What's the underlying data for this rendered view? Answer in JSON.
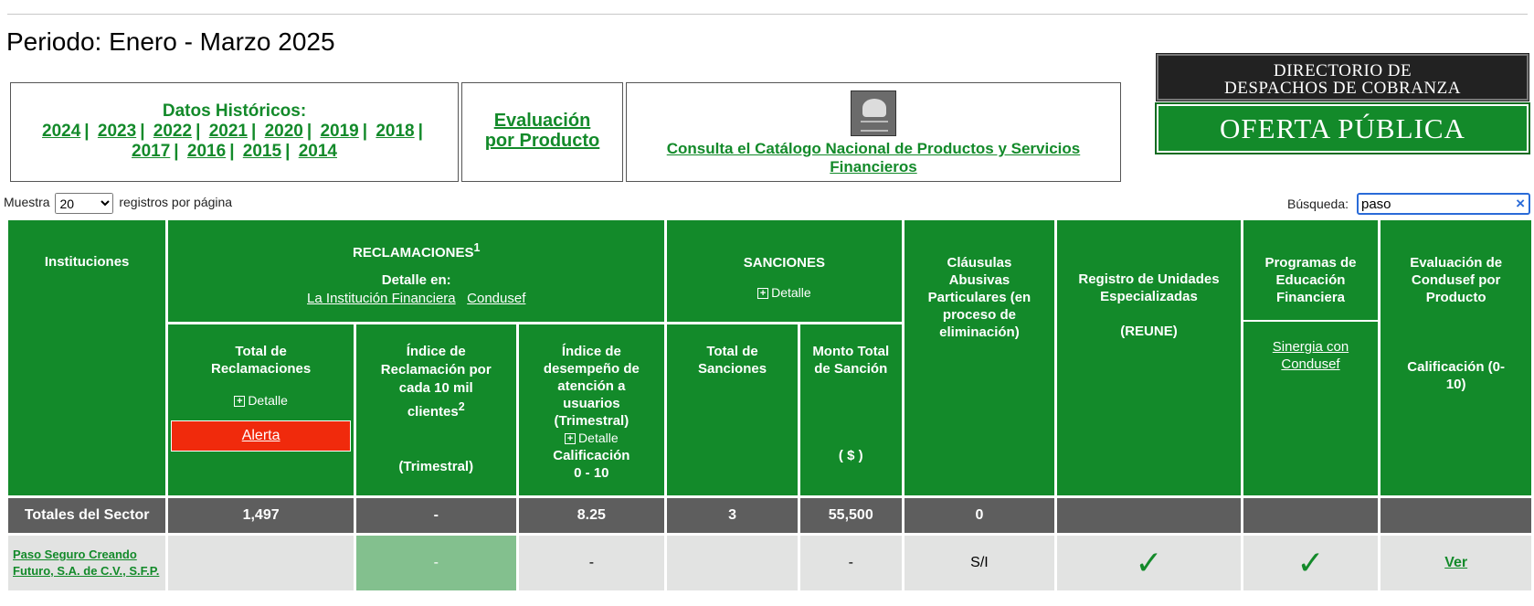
{
  "periodo": "Periodo: Enero - Marzo 2025",
  "historicos": {
    "title": "Datos Históricos:",
    "years": [
      "2024",
      "2023",
      "2022",
      "2021",
      "2020",
      "2019",
      "2018",
      "2017",
      "2016",
      "2015",
      "2014"
    ]
  },
  "evaluacion": {
    "line1": "Evaluación",
    "line2": "por Producto"
  },
  "catalogo": {
    "link": "Consulta el Catálogo Nacional de Productos y Servicios Financieros"
  },
  "banners": {
    "directorio_line1": "DIRECTORIO DE",
    "directorio_line2": "DESPACHOS DE COBRANZA",
    "oferta": "OFERTA PÚBLICA"
  },
  "controls": {
    "muestra_label": "Muestra",
    "page_size": "20",
    "registros_label": "registros por página",
    "busqueda_label": "Búsqueda:",
    "busqueda_value": "paso",
    "clear_icon": "×"
  },
  "headers": {
    "instituciones": "Instituciones",
    "reclamaciones": "RECLAMACIONES",
    "reclamaciones_sup": "1",
    "detalle_en": "Detalle en:",
    "link_institucion": "La Institución Financiera",
    "link_condusef": "Condusef",
    "sanciones": "SANCIONES",
    "detalle": "Detalle",
    "clausulas": "Cláusulas Abusivas Particulares (en proceso de eliminación)",
    "reune_1": "Registro de Unidades Especializadas",
    "reune_2": "(REUNE)",
    "programas": "Programas de Educación Financiera",
    "sinergia": "Sinergia con Condusef",
    "evaluacion_condusef": "Evaluación de Condusef por Producto",
    "calificacion_010": "Calificación (0-10)",
    "total_reclamaciones": "Total de Reclamaciones",
    "alerta": "Alerta",
    "indice_reclamacion": "Índice de Reclamación por cada 10 mil clientes",
    "indice_sup": "2",
    "trimestral": "(Trimestral)",
    "indice_desempeno": "Índice de desempeño de atención a usuarios (Trimestral)",
    "calificacion": "Calificación",
    "rango": "0 - 10",
    "total_sanciones": "Total de Sanciones",
    "monto_total": "Monto Total de Sanción",
    "moneda": "( $ )"
  },
  "totales": {
    "label": "Totales del Sector",
    "total_reclamaciones": "1,497",
    "indice_reclamacion": "-",
    "indice_desempeno": "8.25",
    "total_sanciones": "3",
    "monto_sancion": "55,500",
    "clausulas": "0",
    "reune": "",
    "programas": "",
    "evaluacion": ""
  },
  "rows": [
    {
      "institucion": "Paso Seguro Creando Futuro, S.A. de C.V., S.F.P.",
      "total_reclamaciones": "",
      "indice_reclamacion": "-",
      "indice_desempeno": "-",
      "total_sanciones": "",
      "monto_sancion": "-",
      "clausulas": "S/I",
      "reune": "✓",
      "programas": "✓",
      "evaluacion": "Ver"
    }
  ],
  "colors": {
    "green": "#138a2a",
    "alert": "#f02a0c",
    "totals": "#5e5e5e",
    "row": "#e2e3e2",
    "highlight": "#83c08e"
  }
}
